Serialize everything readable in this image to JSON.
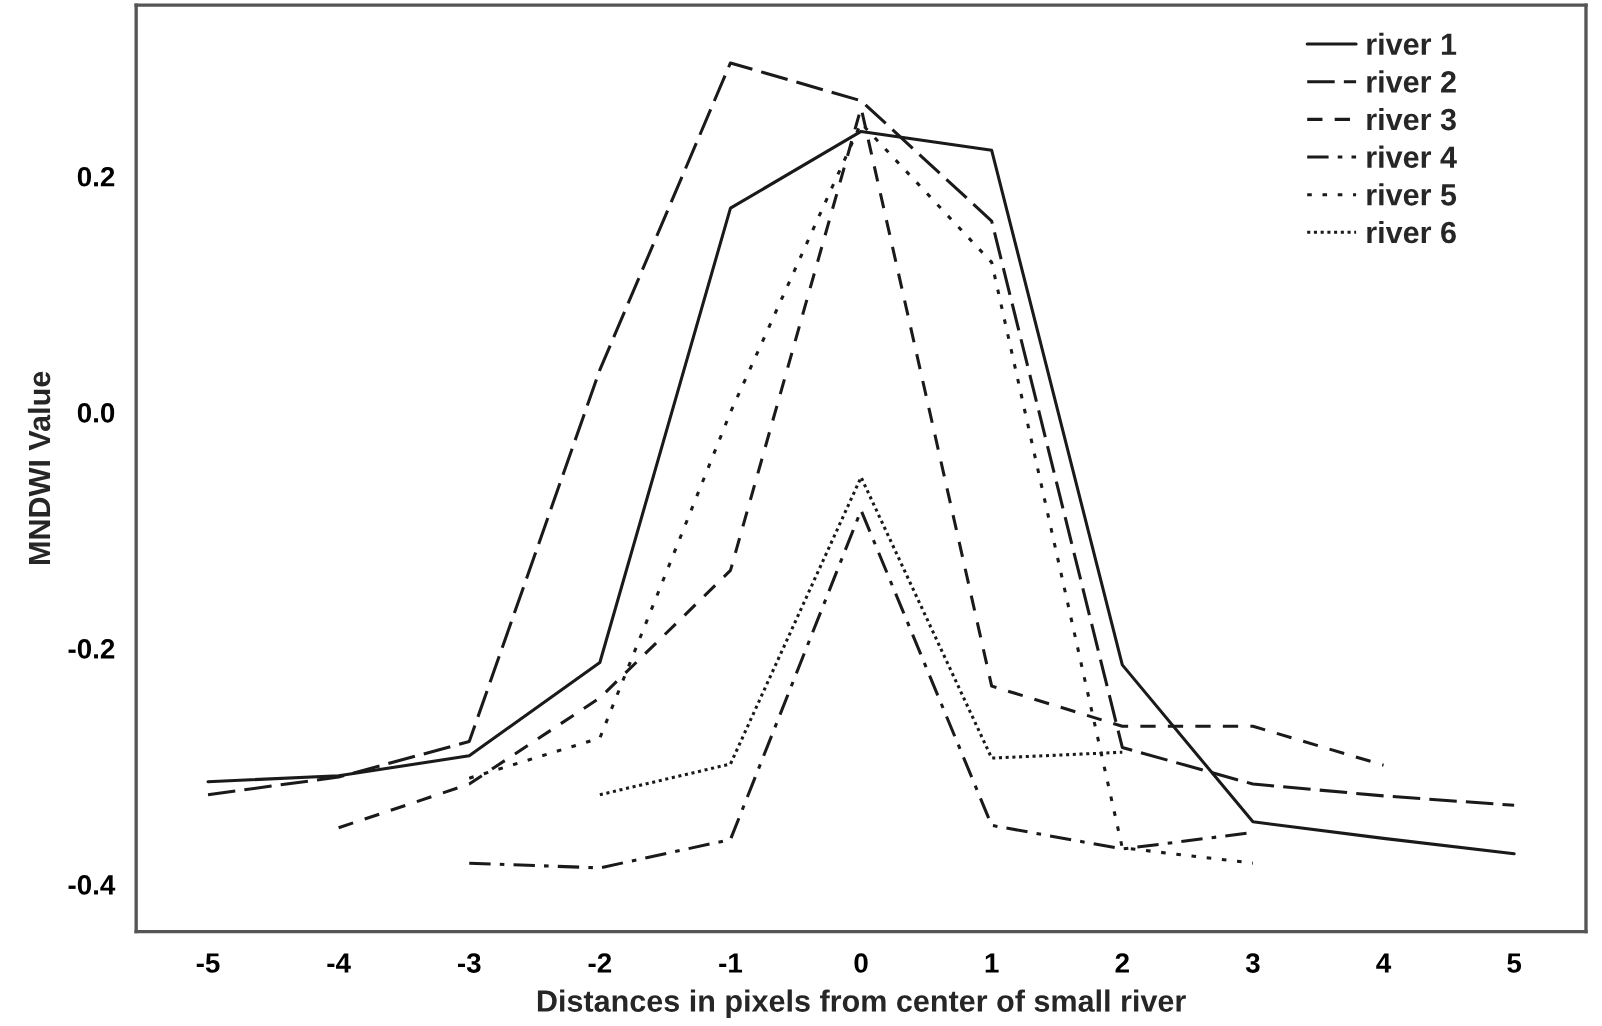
{
  "chart_data": {
    "type": "line",
    "xlabel": "Distances in pixels from center of small river",
    "ylabel": "MNDWI Value",
    "x": [
      -5,
      -4,
      -3,
      -2,
      -1,
      0,
      1,
      2,
      3,
      4,
      5
    ],
    "series": [
      {
        "name": "river 1",
        "color": "#1a1a1a",
        "line_style": "solid",
        "values": [
          -0.313,
          -0.308,
          -0.291,
          -0.212,
          0.173,
          0.238,
          0.222,
          -0.214,
          -0.347,
          -0.361,
          -0.374
        ]
      },
      {
        "name": "river 2",
        "color": "#1a1a1a",
        "line_style": "longdash",
        "values": [
          -0.324,
          -0.309,
          -0.279,
          0.036,
          0.296,
          0.264,
          0.162,
          -0.284,
          -0.315,
          -0.325,
          -0.333
        ]
      },
      {
        "name": "river 3",
        "color": "#1a1a1a",
        "line_style": "dashed",
        "values": [
          null,
          -0.352,
          -0.315,
          -0.242,
          -0.134,
          0.258,
          -0.232,
          -0.266,
          -0.266,
          -0.299,
          null
        ]
      },
      {
        "name": "river 4",
        "color": "#1a1a1a",
        "line_style": "dashdot",
        "values": [
          null,
          null,
          -0.382,
          -0.386,
          -0.362,
          -0.083,
          -0.35,
          -0.37,
          -0.356,
          null,
          null
        ]
      },
      {
        "name": "river 5",
        "color": "#1a1a1a",
        "line_style": "dotted",
        "values": [
          null,
          null,
          -0.31,
          -0.276,
          0.0,
          0.245,
          0.127,
          -0.369,
          -0.382,
          null,
          null
        ]
      },
      {
        "name": "river 6",
        "color": "#1a1a1a",
        "line_style": "densedot",
        "values": [
          null,
          null,
          null,
          -0.324,
          -0.298,
          -0.055,
          -0.293,
          -0.288,
          null,
          null,
          null
        ]
      }
    ],
    "xlim": [
      -5.55,
      5.55
    ],
    "ylim": [
      -0.44,
      0.345
    ],
    "xticks": [
      -5,
      -4,
      -3,
      -2,
      -1,
      0,
      1,
      2,
      3,
      4,
      5
    ],
    "yticks": [
      -0.4,
      -0.2,
      {
        "value": 0,
        "label": "0.0"
      },
      0.2
    ],
    "grid": false,
    "legend": "top right"
  }
}
